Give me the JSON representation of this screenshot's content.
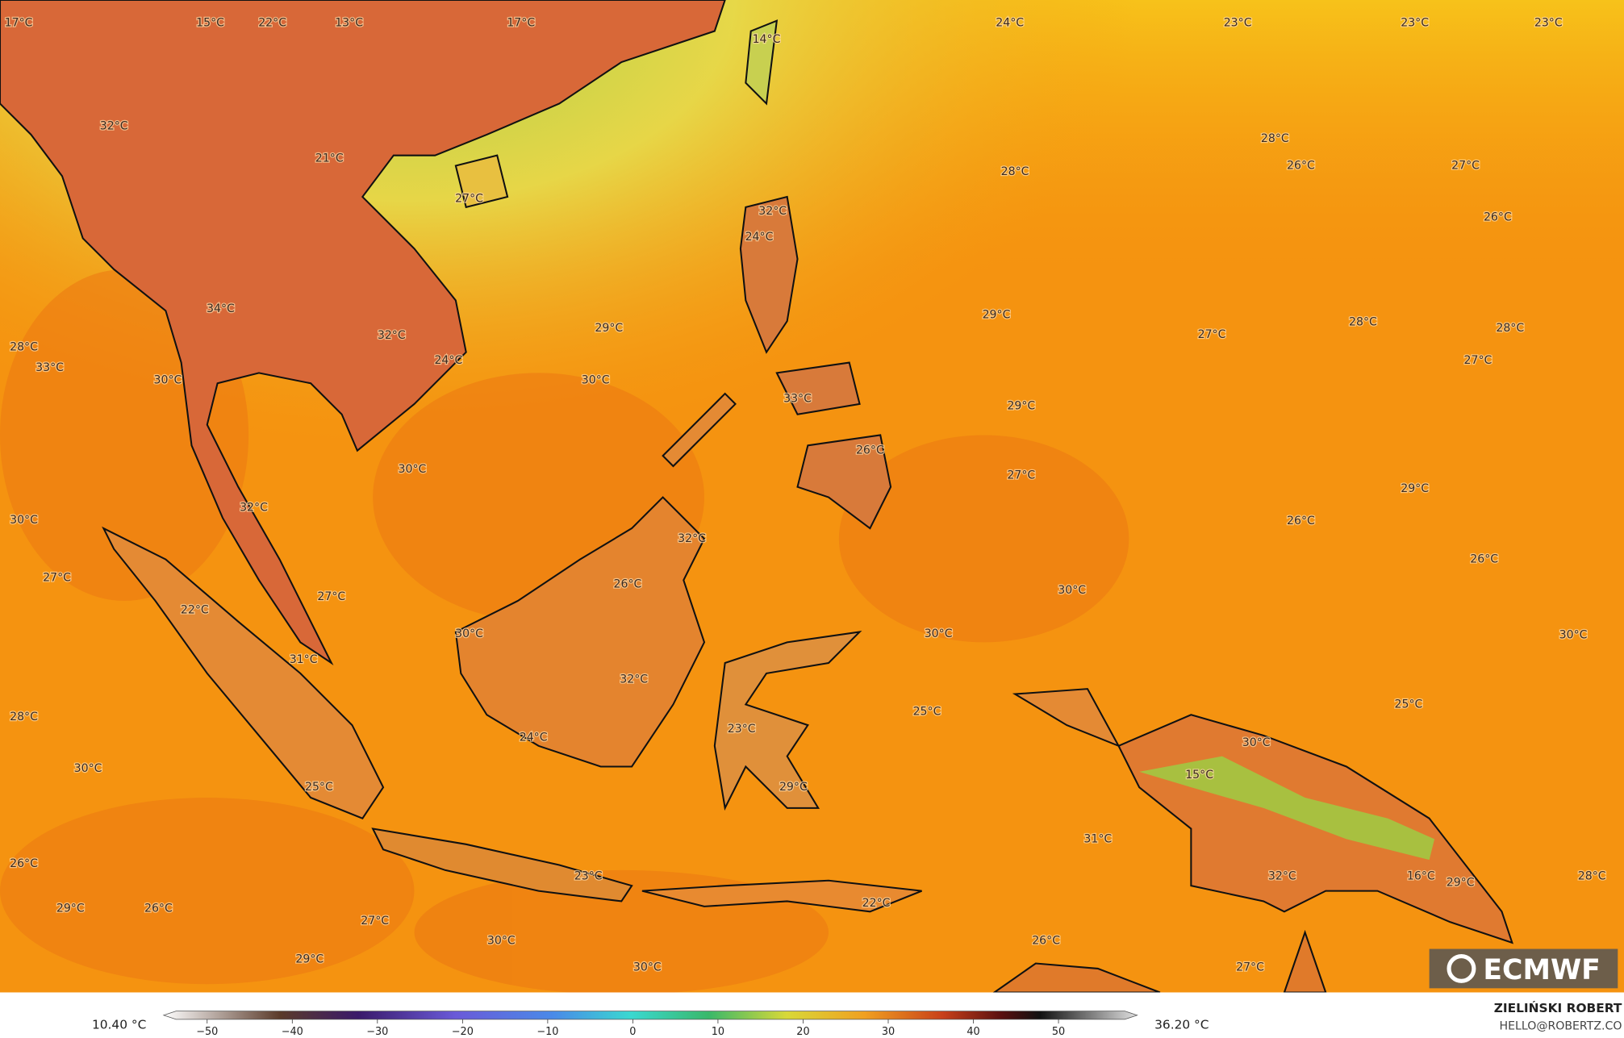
{
  "map": {
    "labels": [
      "17°C",
      "15°C",
      "22°C",
      "13°C",
      "17°C",
      "14°C",
      "24°C",
      "23°C",
      "23°C",
      "23°C",
      "32°C",
      "21°C",
      "27°C",
      "28°C",
      "26°C",
      "27°C",
      "28°C",
      "32°C",
      "24°C",
      "26°C",
      "34°C",
      "32°C",
      "24°C",
      "28°C",
      "33°C",
      "29°C",
      "29°C",
      "27°C",
      "28°C",
      "28°C",
      "27°C",
      "30°C",
      "30°C",
      "33°C",
      "29°C",
      "26°C",
      "30°C",
      "27°C",
      "29°C",
      "30°C",
      "32°C",
      "32°C",
      "26°C",
      "26°C",
      "27°C",
      "27°C",
      "26°C",
      "30°C",
      "22°C",
      "30°C",
      "30°C",
      "30°C",
      "31°C",
      "32°C",
      "25°C",
      "25°C",
      "28°C",
      "23°C",
      "24°C",
      "30°C",
      "30°C",
      "15°C",
      "25°C",
      "29°C",
      "31°C",
      "26°C",
      "23°C",
      "32°C",
      "16°C",
      "29°C",
      "28°C",
      "22°C",
      "29°C",
      "26°C",
      "27°C",
      "30°C",
      "26°C",
      "29°C",
      "30°C",
      "27°C"
    ]
  },
  "colorbar": {
    "min_label": "10.40 °C",
    "max_label": "36.20 °C",
    "ticks": [
      {
        "value": -50,
        "label": "−50"
      },
      {
        "value": -40,
        "label": "−40"
      },
      {
        "value": -30,
        "label": "−30"
      },
      {
        "value": -20,
        "label": "−20"
      },
      {
        "value": -10,
        "label": "−10"
      },
      0,
      10,
      20,
      30,
      40,
      50
    ]
  },
  "logo": "ECMWF",
  "credit": {
    "name": "ZIELIŃSKI ROBERT",
    "email": "HELLO@ROBERTZ.CO"
  }
}
